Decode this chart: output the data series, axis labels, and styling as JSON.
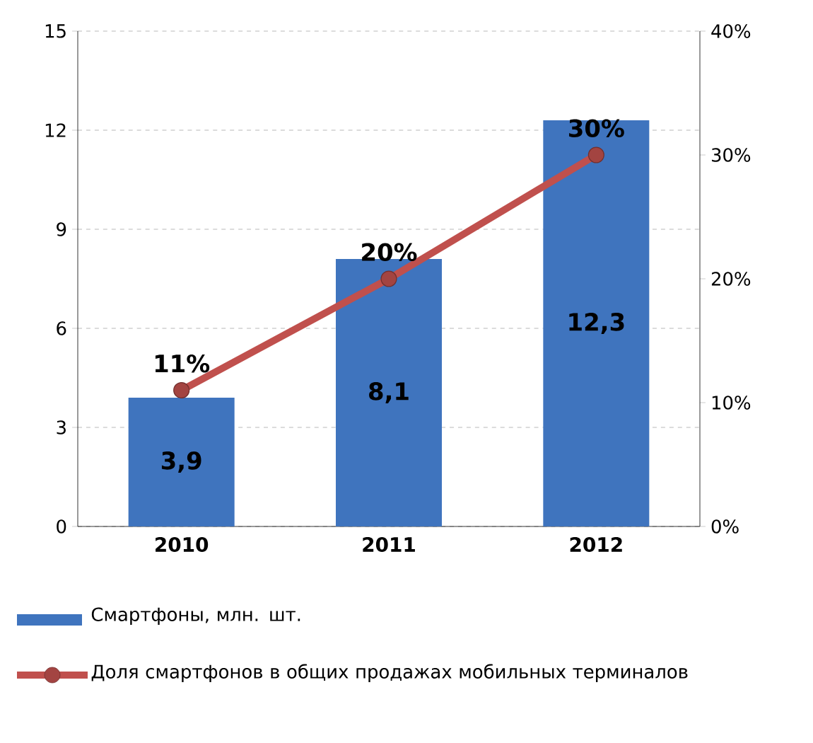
{
  "chart_data": {
    "type": "bar",
    "categories": [
      "2010",
      "2011",
      "2012"
    ],
    "series": [
      {
        "name": "Смартфоны, млн. шт.",
        "color": "#3f74be",
        "values": [
          3.9,
          8.1,
          12.3
        ],
        "value_labels": [
          "3,9",
          "8,1",
          "12,3"
        ]
      },
      {
        "name": "Доля смартфонов в общих продажах мобильных терминалов",
        "type": "line",
        "axis": "y2",
        "color": "#c0504d",
        "marker": "circle",
        "values": [
          11,
          20,
          30
        ],
        "value_labels": [
          "11%",
          "20%",
          "30%"
        ]
      }
    ],
    "ylim": [
      0,
      15
    ],
    "yticks": [
      0,
      3,
      6,
      9,
      12,
      15
    ],
    "y2lim": [
      0,
      40
    ],
    "y2ticks": [
      {
        "value": 0,
        "label": "0%"
      },
      {
        "value": 10,
        "label": "10%"
      },
      {
        "value": 20,
        "label": "20%"
      },
      {
        "value": 30,
        "label": "30%"
      },
      {
        "value": 40,
        "label": "40%"
      }
    ],
    "grid": "y",
    "legend": "bottom"
  }
}
